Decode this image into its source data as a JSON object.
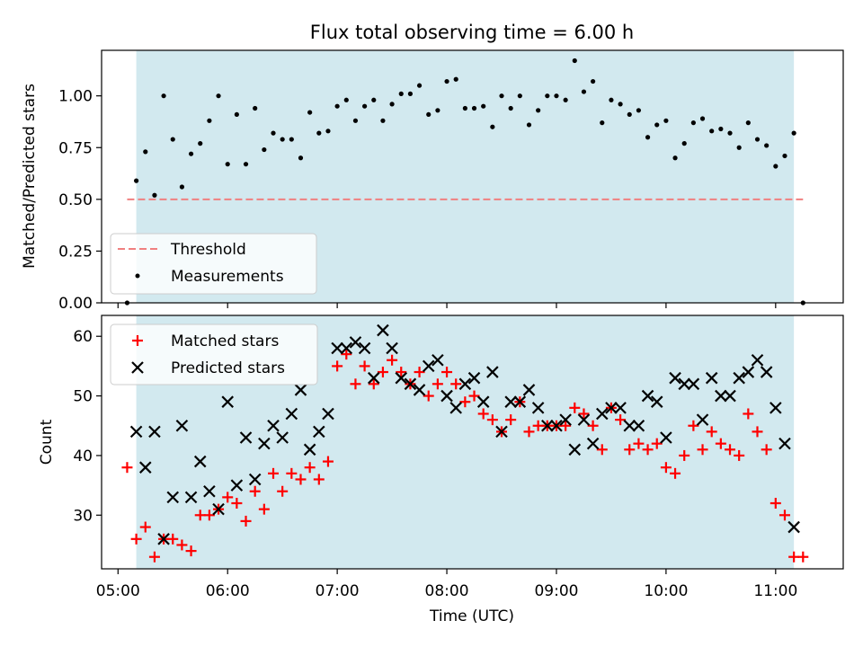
{
  "chart_data": [
    {
      "type": "scatter",
      "title": "Flux total observing time = 6.00 h",
      "ylabel": "Matched/Predicted stars",
      "xlabel": "",
      "xlim": [
        "04:51",
        "11:37"
      ],
      "ylim": [
        0,
        1.22
      ],
      "yticks": [
        "0.00",
        "0.25",
        "0.50",
        "0.75",
        "1.00"
      ],
      "xticks": [
        "05:00",
        "06:00",
        "07:00",
        "08:00",
        "09:00",
        "10:00",
        "11:00"
      ],
      "grid": false,
      "legend_position": "lower-left",
      "shaded_span": {
        "start": "05:10",
        "end": "11:10",
        "color": "#d2e9ef"
      },
      "threshold": {
        "name": "Threshold",
        "y": 0.5,
        "x_start": "05:05",
        "x_end": "11:15",
        "color": "#f08080",
        "style": "dashed"
      },
      "series": [
        {
          "name": "Measurements",
          "color": "#000000",
          "marker": "dot",
          "x": [
            "05:05",
            "05:10",
            "05:15",
            "05:20",
            "05:25",
            "05:30",
            "05:35",
            "05:40",
            "05:45",
            "05:50",
            "05:55",
            "06:00",
            "06:05",
            "06:10",
            "06:15",
            "06:20",
            "06:25",
            "06:30",
            "06:35",
            "06:40",
            "06:45",
            "06:50",
            "06:55",
            "07:00",
            "07:05",
            "07:10",
            "07:15",
            "07:20",
            "07:25",
            "07:30",
            "07:35",
            "07:40",
            "07:45",
            "07:50",
            "07:55",
            "08:00",
            "08:05",
            "08:10",
            "08:15",
            "08:20",
            "08:25",
            "08:30",
            "08:35",
            "08:40",
            "08:45",
            "08:50",
            "08:55",
            "09:00",
            "09:05",
            "09:10",
            "09:15",
            "09:20",
            "09:25",
            "09:30",
            "09:35",
            "09:40",
            "09:45",
            "09:50",
            "09:55",
            "10:00",
            "10:05",
            "10:10",
            "10:15",
            "10:20",
            "10:25",
            "10:30",
            "10:35",
            "10:40",
            "10:45",
            "10:50",
            "10:55",
            "11:00",
            "11:05",
            "11:10",
            "11:15"
          ],
          "y": [
            0.0,
            0.59,
            0.73,
            0.52,
            1.0,
            0.79,
            0.56,
            0.72,
            0.77,
            0.88,
            1.0,
            0.67,
            0.91,
            0.67,
            0.94,
            0.74,
            0.82,
            0.79,
            0.79,
            0.7,
            0.92,
            0.82,
            0.83,
            0.95,
            0.98,
            0.88,
            0.95,
            0.98,
            0.88,
            0.96,
            1.01,
            1.01,
            1.05,
            0.91,
            0.93,
            1.07,
            1.08,
            0.94,
            0.94,
            0.95,
            0.85,
            1.0,
            0.94,
            1.0,
            0.86,
            0.93,
            1.0,
            1.0,
            0.98,
            1.17,
            1.02,
            1.07,
            0.87,
            0.98,
            0.96,
            0.91,
            0.93,
            0.8,
            0.86,
            0.88,
            0.7,
            0.77,
            0.87,
            0.89,
            0.83,
            0.84,
            0.82,
            0.75,
            0.87,
            0.79,
            0.76,
            0.66,
            0.71,
            0.82,
            0.0
          ]
        }
      ]
    },
    {
      "type": "scatter",
      "title": "",
      "ylabel": "Count",
      "xlabel": "Time (UTC)",
      "xlim": [
        "04:51",
        "11:37"
      ],
      "ylim": [
        21,
        63.5
      ],
      "yticks": [
        "30",
        "40",
        "50",
        "60"
      ],
      "xticks": [
        "05:00",
        "06:00",
        "07:00",
        "08:00",
        "09:00",
        "10:00",
        "11:00"
      ],
      "grid": false,
      "legend_position": "top-left",
      "shaded_span": {
        "start": "05:10",
        "end": "11:10",
        "color": "#d2e9ef"
      },
      "series": [
        {
          "name": "Matched stars",
          "color": "#ff0000",
          "marker": "plus",
          "x": [
            "05:05",
            "05:10",
            "05:15",
            "05:20",
            "05:25",
            "05:30",
            "05:35",
            "05:40",
            "05:45",
            "05:50",
            "05:55",
            "06:00",
            "06:05",
            "06:10",
            "06:15",
            "06:20",
            "06:25",
            "06:30",
            "06:35",
            "06:40",
            "06:45",
            "06:50",
            "06:55",
            "07:00",
            "07:05",
            "07:10",
            "07:15",
            "07:20",
            "07:25",
            "07:30",
            "07:35",
            "07:40",
            "07:45",
            "07:50",
            "07:55",
            "08:00",
            "08:05",
            "08:10",
            "08:15",
            "08:20",
            "08:25",
            "08:30",
            "08:35",
            "08:40",
            "08:45",
            "08:50",
            "08:55",
            "09:00",
            "09:05",
            "09:10",
            "09:15",
            "09:20",
            "09:25",
            "09:30",
            "09:35",
            "09:40",
            "09:45",
            "09:50",
            "09:55",
            "10:00",
            "10:05",
            "10:10",
            "10:15",
            "10:20",
            "10:25",
            "10:30",
            "10:35",
            "10:40",
            "10:45",
            "10:50",
            "10:55",
            "11:00",
            "11:05",
            "11:10",
            "11:15"
          ],
          "y": [
            38,
            26,
            28,
            23,
            26,
            26,
            25,
            24,
            30,
            30,
            31,
            33,
            32,
            29,
            34,
            31,
            37,
            34,
            37,
            36,
            38,
            36,
            39,
            55,
            57,
            52,
            55,
            52,
            54,
            56,
            54,
            52,
            54,
            50,
            52,
            54,
            52,
            49,
            50,
            47,
            46,
            44,
            46,
            49,
            44,
            45,
            45,
            45,
            45,
            48,
            47,
            45,
            41,
            48,
            46,
            41,
            42,
            41,
            42,
            38,
            37,
            40,
            45,
            41,
            44,
            42,
            41,
            40,
            47,
            44,
            41,
            32,
            30,
            23,
            23
          ]
        },
        {
          "name": "Predicted stars",
          "color": "#000000",
          "marker": "x",
          "x": [
            "05:10",
            "05:15",
            "05:20",
            "05:25",
            "05:30",
            "05:35",
            "05:40",
            "05:45",
            "05:50",
            "05:55",
            "06:00",
            "06:05",
            "06:10",
            "06:15",
            "06:20",
            "06:25",
            "06:30",
            "06:35",
            "06:40",
            "06:45",
            "06:50",
            "06:55",
            "07:00",
            "07:05",
            "07:10",
            "07:15",
            "07:20",
            "07:25",
            "07:30",
            "07:35",
            "07:40",
            "07:45",
            "07:50",
            "07:55",
            "08:00",
            "08:05",
            "08:10",
            "08:15",
            "08:20",
            "08:25",
            "08:30",
            "08:35",
            "08:40",
            "08:45",
            "08:50",
            "08:55",
            "09:00",
            "09:05",
            "09:10",
            "09:15",
            "09:20",
            "09:25",
            "09:30",
            "09:35",
            "09:40",
            "09:45",
            "09:50",
            "09:55",
            "10:00",
            "10:05",
            "10:10",
            "10:15",
            "10:20",
            "10:25",
            "10:30",
            "10:35",
            "10:40",
            "10:45",
            "10:50",
            "10:55",
            "11:00",
            "11:05",
            "11:10"
          ],
          "y": [
            44,
            38,
            44,
            26,
            33,
            45,
            33,
            39,
            34,
            31,
            49,
            35,
            43,
            36,
            42,
            45,
            43,
            47,
            51,
            41,
            44,
            47,
            58,
            58,
            59,
            58,
            53,
            61,
            58,
            53,
            52,
            51,
            55,
            56,
            50,
            48,
            52,
            53,
            49,
            54,
            44,
            49,
            49,
            51,
            48,
            45,
            45,
            46,
            41,
            46,
            42,
            47,
            48,
            48,
            45,
            45,
            50,
            49,
            43,
            53,
            52,
            52,
            46,
            53,
            50,
            50,
            53,
            54,
            56,
            54,
            48,
            42,
            28
          ]
        }
      ]
    }
  ]
}
